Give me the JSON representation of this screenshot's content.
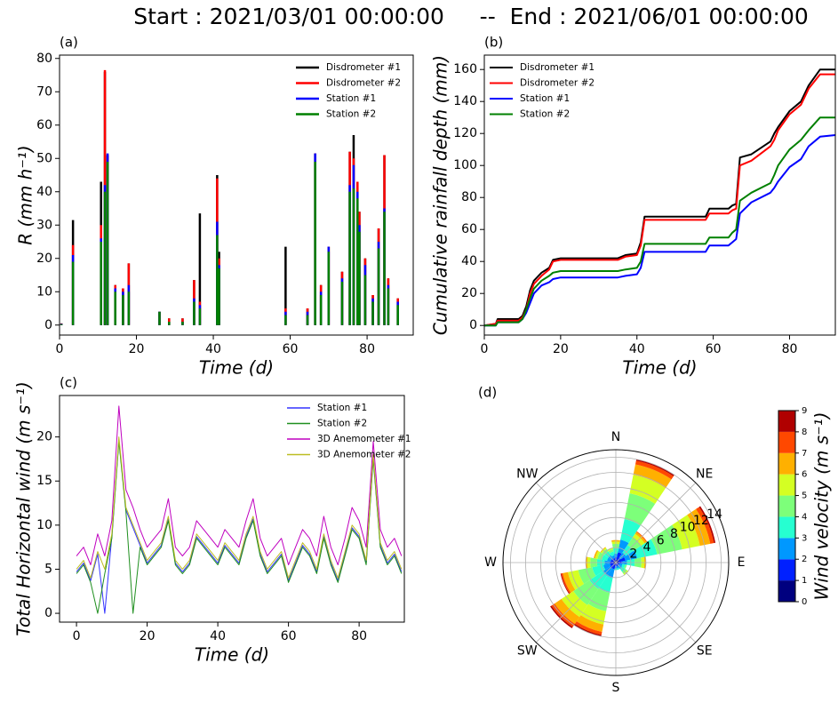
{
  "title": "Start : 2021/03/01 00:00:00     --  End : 2021/06/01 00:00:00",
  "chart_data": [
    {
      "type": "stem",
      "panel_label": "(a)",
      "xlabel": "Time (d)",
      "ylabel": "R (mm h⁻¹)",
      "xlim": [
        0,
        92
      ],
      "ylim": [
        -3,
        81
      ],
      "xticks": [
        0,
        20,
        40,
        60,
        80
      ],
      "yticks": [
        0,
        10,
        20,
        30,
        40,
        50,
        60,
        70,
        80
      ],
      "legend": "upper right",
      "x": [
        0.5,
        3.5,
        10.8,
        11.8,
        12.5,
        14.5,
        16.5,
        18,
        26,
        28.5,
        32,
        35,
        36.5,
        41,
        41.5,
        58.8,
        64.5,
        66.5,
        68,
        70,
        73.5,
        75.5,
        76.5,
        77.5,
        78,
        79.5,
        81.5,
        83,
        84.5,
        85.5,
        88
      ],
      "series": [
        {
          "name": "Disdrometer #1",
          "color": "#000000",
          "values": [
            0.5,
            31.5,
            43,
            76,
            51,
            12,
            11,
            18.5,
            4,
            2,
            2,
            13.5,
            33.5,
            45,
            22,
            23.5,
            5,
            51.5,
            12,
            23.5,
            16,
            52,
            57,
            43,
            34,
            20,
            9,
            29,
            51,
            14,
            8
          ]
        },
        {
          "name": "Disdrometer #2",
          "color": "#ff0000",
          "values": [
            0.5,
            24,
            30,
            76.5,
            51,
            12,
            11,
            18.5,
            4,
            2,
            2,
            13.5,
            7,
            44,
            20,
            5,
            5,
            51.5,
            12,
            23.5,
            16,
            52,
            50,
            43,
            34,
            20,
            9,
            29,
            51,
            14,
            8
          ]
        },
        {
          "name": "Station #1",
          "color": "#0000ff",
          "values": [
            0.4,
            21,
            26,
            42,
            51.5,
            11,
            10,
            12,
            4,
            1,
            1,
            8,
            6,
            31,
            18,
            4,
            4,
            51.5,
            10,
            23.5,
            14,
            42,
            48,
            40,
            30,
            18,
            8,
            25,
            35,
            12,
            7
          ]
        },
        {
          "name": "Station #2",
          "color": "#008000",
          "values": [
            0.3,
            19,
            25,
            40,
            49,
            10,
            9,
            10,
            4,
            1,
            1,
            7,
            5,
            27,
            17,
            3,
            3,
            49,
            9,
            22,
            13,
            40,
            41,
            38,
            28,
            15,
            7,
            23,
            34,
            11,
            6
          ]
        }
      ]
    },
    {
      "type": "line",
      "panel_label": "(b)",
      "xlabel": "Time (d)",
      "ylabel": "Cumulative rainfall depth (mm)",
      "xlim": [
        0,
        92
      ],
      "ylim": [
        -6,
        169
      ],
      "xticks": [
        0,
        20,
        40,
        60,
        80
      ],
      "yticks": [
        0,
        20,
        40,
        60,
        80,
        100,
        120,
        140,
        160
      ],
      "legend": "upper left",
      "x": [
        0,
        3,
        3.5,
        9,
        10,
        11,
        12,
        13,
        15,
        17,
        18,
        20,
        35,
        37,
        40,
        41,
        42,
        55,
        58,
        59,
        64,
        65,
        66,
        67,
        70,
        75,
        76,
        77,
        80,
        83,
        85,
        88,
        92
      ],
      "series": [
        {
          "name": "Disdrometer #1",
          "color": "#000000",
          "values": [
            0,
            1,
            4,
            4,
            6,
            12,
            22,
            28,
            33,
            36,
            41,
            42,
            42,
            44,
            45,
            52,
            68,
            68,
            68,
            73,
            73,
            75,
            76,
            105,
            107,
            115,
            120,
            124,
            134,
            140,
            150,
            160,
            160
          ]
        },
        {
          "name": "Disdrometer #2",
          "color": "#ff0000",
          "values": [
            0,
            1,
            3,
            3,
            5,
            10,
            20,
            26,
            31,
            35,
            40,
            41,
            41,
            43,
            44,
            50,
            66,
            66,
            66,
            70,
            70,
            72,
            73,
            100,
            103,
            112,
            116,
            122,
            132,
            138,
            148,
            157,
            157
          ]
        },
        {
          "name": "Station #1",
          "color": "#0000ff",
          "values": [
            0,
            0,
            2,
            2,
            4,
            8,
            14,
            20,
            25,
            27,
            29,
            30,
            30,
            31,
            32,
            36,
            46,
            46,
            46,
            50,
            50,
            52,
            54,
            70,
            77,
            83,
            86,
            90,
            99,
            104,
            112,
            118,
            119
          ]
        },
        {
          "name": "Station #2",
          "color": "#008000",
          "values": [
            0,
            0,
            2,
            2,
            4,
            10,
            17,
            23,
            28,
            31,
            33,
            34,
            34,
            35,
            36,
            40,
            51,
            51,
            51,
            55,
            55,
            58,
            60,
            78,
            83,
            89,
            94,
            100,
            110,
            116,
            122,
            130,
            130
          ]
        }
      ]
    },
    {
      "type": "line",
      "panel_label": "(c)",
      "xlabel": "Time (d)",
      "ylabel": "Total Horizontal wind (m s⁻¹)",
      "xlim": [
        -4.8,
        92.8
      ],
      "ylim": [
        -1,
        24.7
      ],
      "xticks": [
        0,
        20,
        40,
        60,
        80
      ],
      "yticks": [
        0,
        5,
        10,
        15,
        20
      ],
      "legend": "upper right",
      "x": [
        0,
        2,
        4,
        6,
        8,
        10,
        12,
        14,
        16,
        18,
        20,
        22,
        24,
        26,
        28,
        30,
        32,
        34,
        36,
        38,
        40,
        42,
        44,
        46,
        48,
        50,
        52,
        54,
        56,
        58,
        60,
        62,
        64,
        66,
        68,
        70,
        72,
        74,
        76,
        78,
        80,
        82,
        84,
        86,
        88,
        90,
        92
      ],
      "series": [
        {
          "name": "Station #1",
          "color": "#3333ff",
          "values": [
            4.7,
            5.7,
            3.7,
            6.7,
            0,
            8.7,
            19.7,
            11.7,
            9.7,
            7.7,
            5.7,
            6.7,
            7.7,
            10.7,
            5.7,
            4.7,
            5.7,
            8.7,
            7.7,
            6.7,
            5.7,
            7.7,
            6.7,
            5.7,
            8.7,
            10.7,
            6.7,
            4.7,
            5.7,
            6.7,
            3.7,
            5.7,
            7.7,
            6.7,
            4.7,
            8.7,
            5.7,
            3.7,
            6.7,
            9.7,
            8.7,
            5.7,
            17.7,
            7.7,
            5.7,
            6.7,
            4.7
          ]
        },
        {
          "name": "Station #2",
          "color": "#1f8f1f",
          "values": [
            4.5,
            5.5,
            3.5,
            0,
            4.5,
            8.5,
            19.5,
            11.5,
            0,
            7.5,
            5.5,
            6.5,
            7.5,
            10.5,
            5.5,
            4.5,
            5.5,
            8.5,
            7.5,
            6.5,
            5.5,
            7.5,
            6.5,
            5.5,
            8.5,
            10.5,
            6.5,
            4.5,
            5.5,
            6.5,
            3.5,
            5.5,
            7.5,
            6.5,
            4.5,
            8.5,
            5.5,
            3.5,
            6.5,
            9.5,
            8.5,
            5.5,
            17.5,
            7.5,
            5.5,
            6.5,
            4.5
          ]
        },
        {
          "name": "3D Anemometer #1",
          "color": "#bf00bf",
          "values": [
            6.5,
            7.5,
            5.5,
            9,
            6.5,
            10.5,
            23.5,
            14,
            12,
            9.5,
            7.5,
            8.5,
            9.5,
            13,
            7.5,
            6.5,
            7.5,
            10.5,
            9.5,
            8.5,
            7.5,
            9.5,
            8.5,
            7.5,
            10.5,
            13,
            8.5,
            6.5,
            7.5,
            8.5,
            5.5,
            7.5,
            9.5,
            8.5,
            6.5,
            11,
            7.5,
            5.5,
            8.5,
            12,
            10.5,
            7.5,
            19.5,
            9.5,
            7.5,
            8.5,
            6.5
          ]
        },
        {
          "name": "3D Anemometer #2",
          "color": "#bcbd22",
          "values": [
            5,
            6,
            4,
            7,
            5,
            9,
            20,
            12,
            10,
            8,
            6,
            7,
            8,
            11,
            6,
            5,
            6,
            9,
            8,
            7,
            6,
            8,
            7,
            6,
            9,
            11,
            7,
            5,
            6,
            7,
            4,
            6,
            8,
            7,
            5,
            9,
            6,
            4,
            7,
            10,
            9,
            6,
            18,
            8,
            6,
            7,
            5
          ]
        }
      ]
    },
    {
      "type": "windrose",
      "panel_label": "(d)",
      "grid": true,
      "categories": [
        "N",
        null,
        "NE",
        null,
        "E",
        null,
        "SE",
        null,
        "S",
        null,
        "SW",
        null,
        "W",
        null,
        "NW",
        null
      ],
      "rlim": [
        0,
        15
      ],
      "rticks": [
        2,
        4,
        6,
        8,
        10,
        12,
        14
      ],
      "colorbar": {
        "label": "Wind velocity (m s⁻¹)",
        "ticks": [
          0,
          1,
          2,
          3,
          4,
          5,
          6,
          7,
          8,
          9
        ]
      },
      "series": [
        {
          "color": "#00007f",
          "values": [
            0.3,
            0.4,
            0.3,
            0.4,
            0.3,
            0.2,
            0.2,
            0.2,
            0.2,
            0.3,
            0.3,
            0.3,
            0.3,
            0.3,
            0.3,
            0.3
          ]
        },
        {
          "color": "#0020ff",
          "values": [
            0.4,
            1.0,
            0.5,
            0.9,
            0.5,
            0.3,
            0.3,
            0.3,
            0.3,
            0.6,
            0.6,
            0.5,
            0.5,
            0.4,
            0.4,
            0.3
          ]
        },
        {
          "color": "#0098ff",
          "values": [
            0.5,
            1.7,
            0.8,
            1.6,
            0.7,
            0.4,
            0.5,
            0.3,
            0.3,
            1.2,
            1.2,
            0.9,
            0.7,
            0.5,
            0.5,
            0.4
          ]
        },
        {
          "color": "#26ffd1",
          "values": [
            0.7,
            2.8,
            1.2,
            2.7,
            1.0,
            0.4,
            0.5,
            0.2,
            0.2,
            2.0,
            2.1,
            1.5,
            1.0,
            0.7,
            0.6,
            0.5
          ]
        },
        {
          "color": "#7dff7a",
          "values": [
            0.6,
            3.5,
            1.2,
            3.4,
            0.9,
            0.2,
            0.3,
            0,
            0,
            2.5,
            2.6,
            1.9,
            0.9,
            0.6,
            0.4,
            0.3
          ]
        },
        {
          "color": "#d4ff23",
          "values": [
            0.3,
            2.5,
            0.6,
            2.4,
            0.4,
            0,
            0.2,
            0,
            0,
            1.8,
            1.9,
            1.4,
            0.4,
            0.3,
            0.2,
            0.2
          ]
        },
        {
          "color": "#ffb000",
          "values": [
            0.2,
            1.4,
            0.3,
            1.4,
            0.2,
            0,
            0,
            0,
            0,
            1.0,
            1.1,
            0.7,
            0.2,
            0.2,
            0.1,
            0
          ]
        },
        {
          "color": "#ff4800",
          "values": [
            0,
            0.5,
            0.1,
            0.5,
            0,
            0,
            0,
            0,
            0,
            0.4,
            0.5,
            0.2,
            0,
            0,
            0,
            0
          ]
        },
        {
          "color": "#b00000",
          "values": [
            0,
            0.2,
            0,
            0.2,
            0,
            0,
            0,
            0,
            0,
            0.2,
            0.2,
            0.1,
            0,
            0,
            0,
            0
          ]
        }
      ]
    }
  ]
}
